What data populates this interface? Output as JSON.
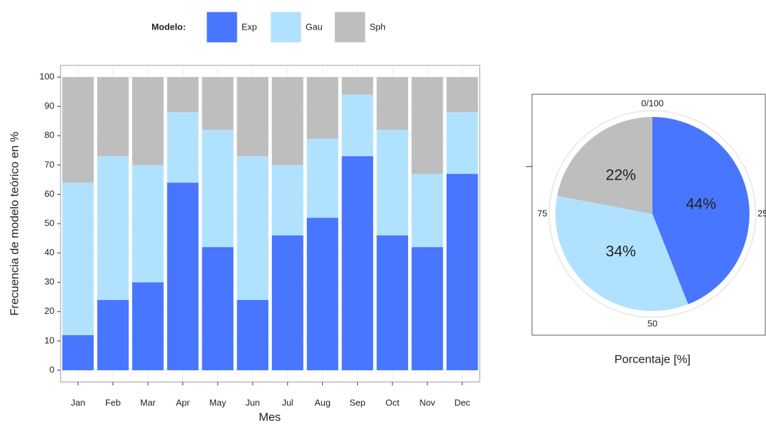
{
  "chart_data": [
    {
      "type": "bar",
      "stacked": true,
      "legend_title": "Modelo:",
      "ylabel": "Frecuencia de modelo teórico en %",
      "xlabel": "Mes",
      "categories": [
        "Jan",
        "Feb",
        "Mar",
        "Apr",
        "May",
        "Jun",
        "Jul",
        "Aug",
        "Sep",
        "Oct",
        "Nov",
        "Dec"
      ],
      "series": [
        {
          "name": "Exp",
          "color": "#4876ff",
          "values": [
            12,
            24,
            30,
            64,
            42,
            24,
            46,
            52,
            73,
            46,
            42,
            67
          ]
        },
        {
          "name": "Gau",
          "color": "#b0e2ff",
          "values": [
            52,
            49,
            40,
            24,
            40,
            49,
            24,
            27,
            21,
            36,
            25,
            21
          ]
        },
        {
          "name": "Sph",
          "color": "#bebebe",
          "values": [
            36,
            27,
            30,
            12,
            18,
            27,
            30,
            21,
            6,
            18,
            33,
            12
          ]
        }
      ],
      "ylim": [
        -4,
        104
      ],
      "yticks": [
        0,
        10,
        20,
        30,
        40,
        50,
        60,
        70,
        80,
        90,
        100
      ],
      "grid": true
    },
    {
      "type": "pie",
      "xlabel": "Porcentaje [%]",
      "categories": [
        "Exp",
        "Gau",
        "Sph"
      ],
      "colors": [
        "#4876ff",
        "#b0e2ff",
        "#bebebe"
      ],
      "values": [
        44,
        34,
        22
      ],
      "value_labels": [
        "44%",
        "34%",
        "22%"
      ],
      "thetaticks": [
        {
          "value": 0,
          "label": "0/100"
        },
        25,
        50,
        75
      ]
    }
  ]
}
